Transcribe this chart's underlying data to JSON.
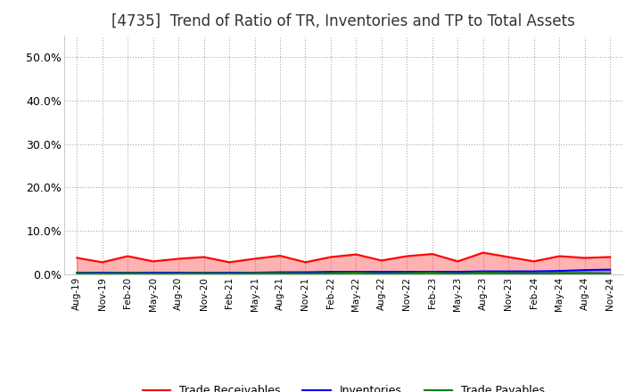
{
  "title": "[4735]  Trend of Ratio of TR, Inventories and TP to Total Assets",
  "title_fontsize": 12,
  "ylim": [
    0.0,
    0.55
  ],
  "yticks": [
    0.0,
    0.1,
    0.2,
    0.3,
    0.4,
    0.5
  ],
  "x_labels": [
    "Aug-19",
    "Nov-19",
    "Feb-20",
    "May-20",
    "Aug-20",
    "Nov-20",
    "Feb-21",
    "May-21",
    "Aug-21",
    "Nov-21",
    "Feb-22",
    "May-22",
    "Aug-22",
    "Nov-22",
    "Feb-23",
    "May-23",
    "Aug-23",
    "Nov-23",
    "Feb-24",
    "May-24",
    "Aug-24",
    "Nov-24"
  ],
  "trade_receivables": [
    0.038,
    0.028,
    0.042,
    0.03,
    0.036,
    0.04,
    0.028,
    0.036,
    0.043,
    0.028,
    0.04,
    0.046,
    0.032,
    0.042,
    0.047,
    0.03,
    0.05,
    0.04,
    0.03,
    0.042,
    0.038,
    0.04
  ],
  "inventories": [
    0.004,
    0.004,
    0.004,
    0.004,
    0.004,
    0.004,
    0.004,
    0.004,
    0.005,
    0.005,
    0.006,
    0.006,
    0.006,
    0.006,
    0.006,
    0.006,
    0.007,
    0.007,
    0.007,
    0.008,
    0.01,
    0.011
  ],
  "trade_payables": [
    0.003,
    0.002,
    0.003,
    0.002,
    0.002,
    0.003,
    0.002,
    0.003,
    0.003,
    0.002,
    0.003,
    0.004,
    0.002,
    0.003,
    0.004,
    0.002,
    0.004,
    0.003,
    0.002,
    0.003,
    0.003,
    0.002
  ],
  "tr_color": "#ff0000",
  "inv_color": "#0000ff",
  "tp_color": "#008000",
  "bg_color": "#ffffff",
  "grid_color": "#aaaaaa",
  "legend_labels": [
    "Trade Receivables",
    "Inventories",
    "Trade Payables"
  ]
}
